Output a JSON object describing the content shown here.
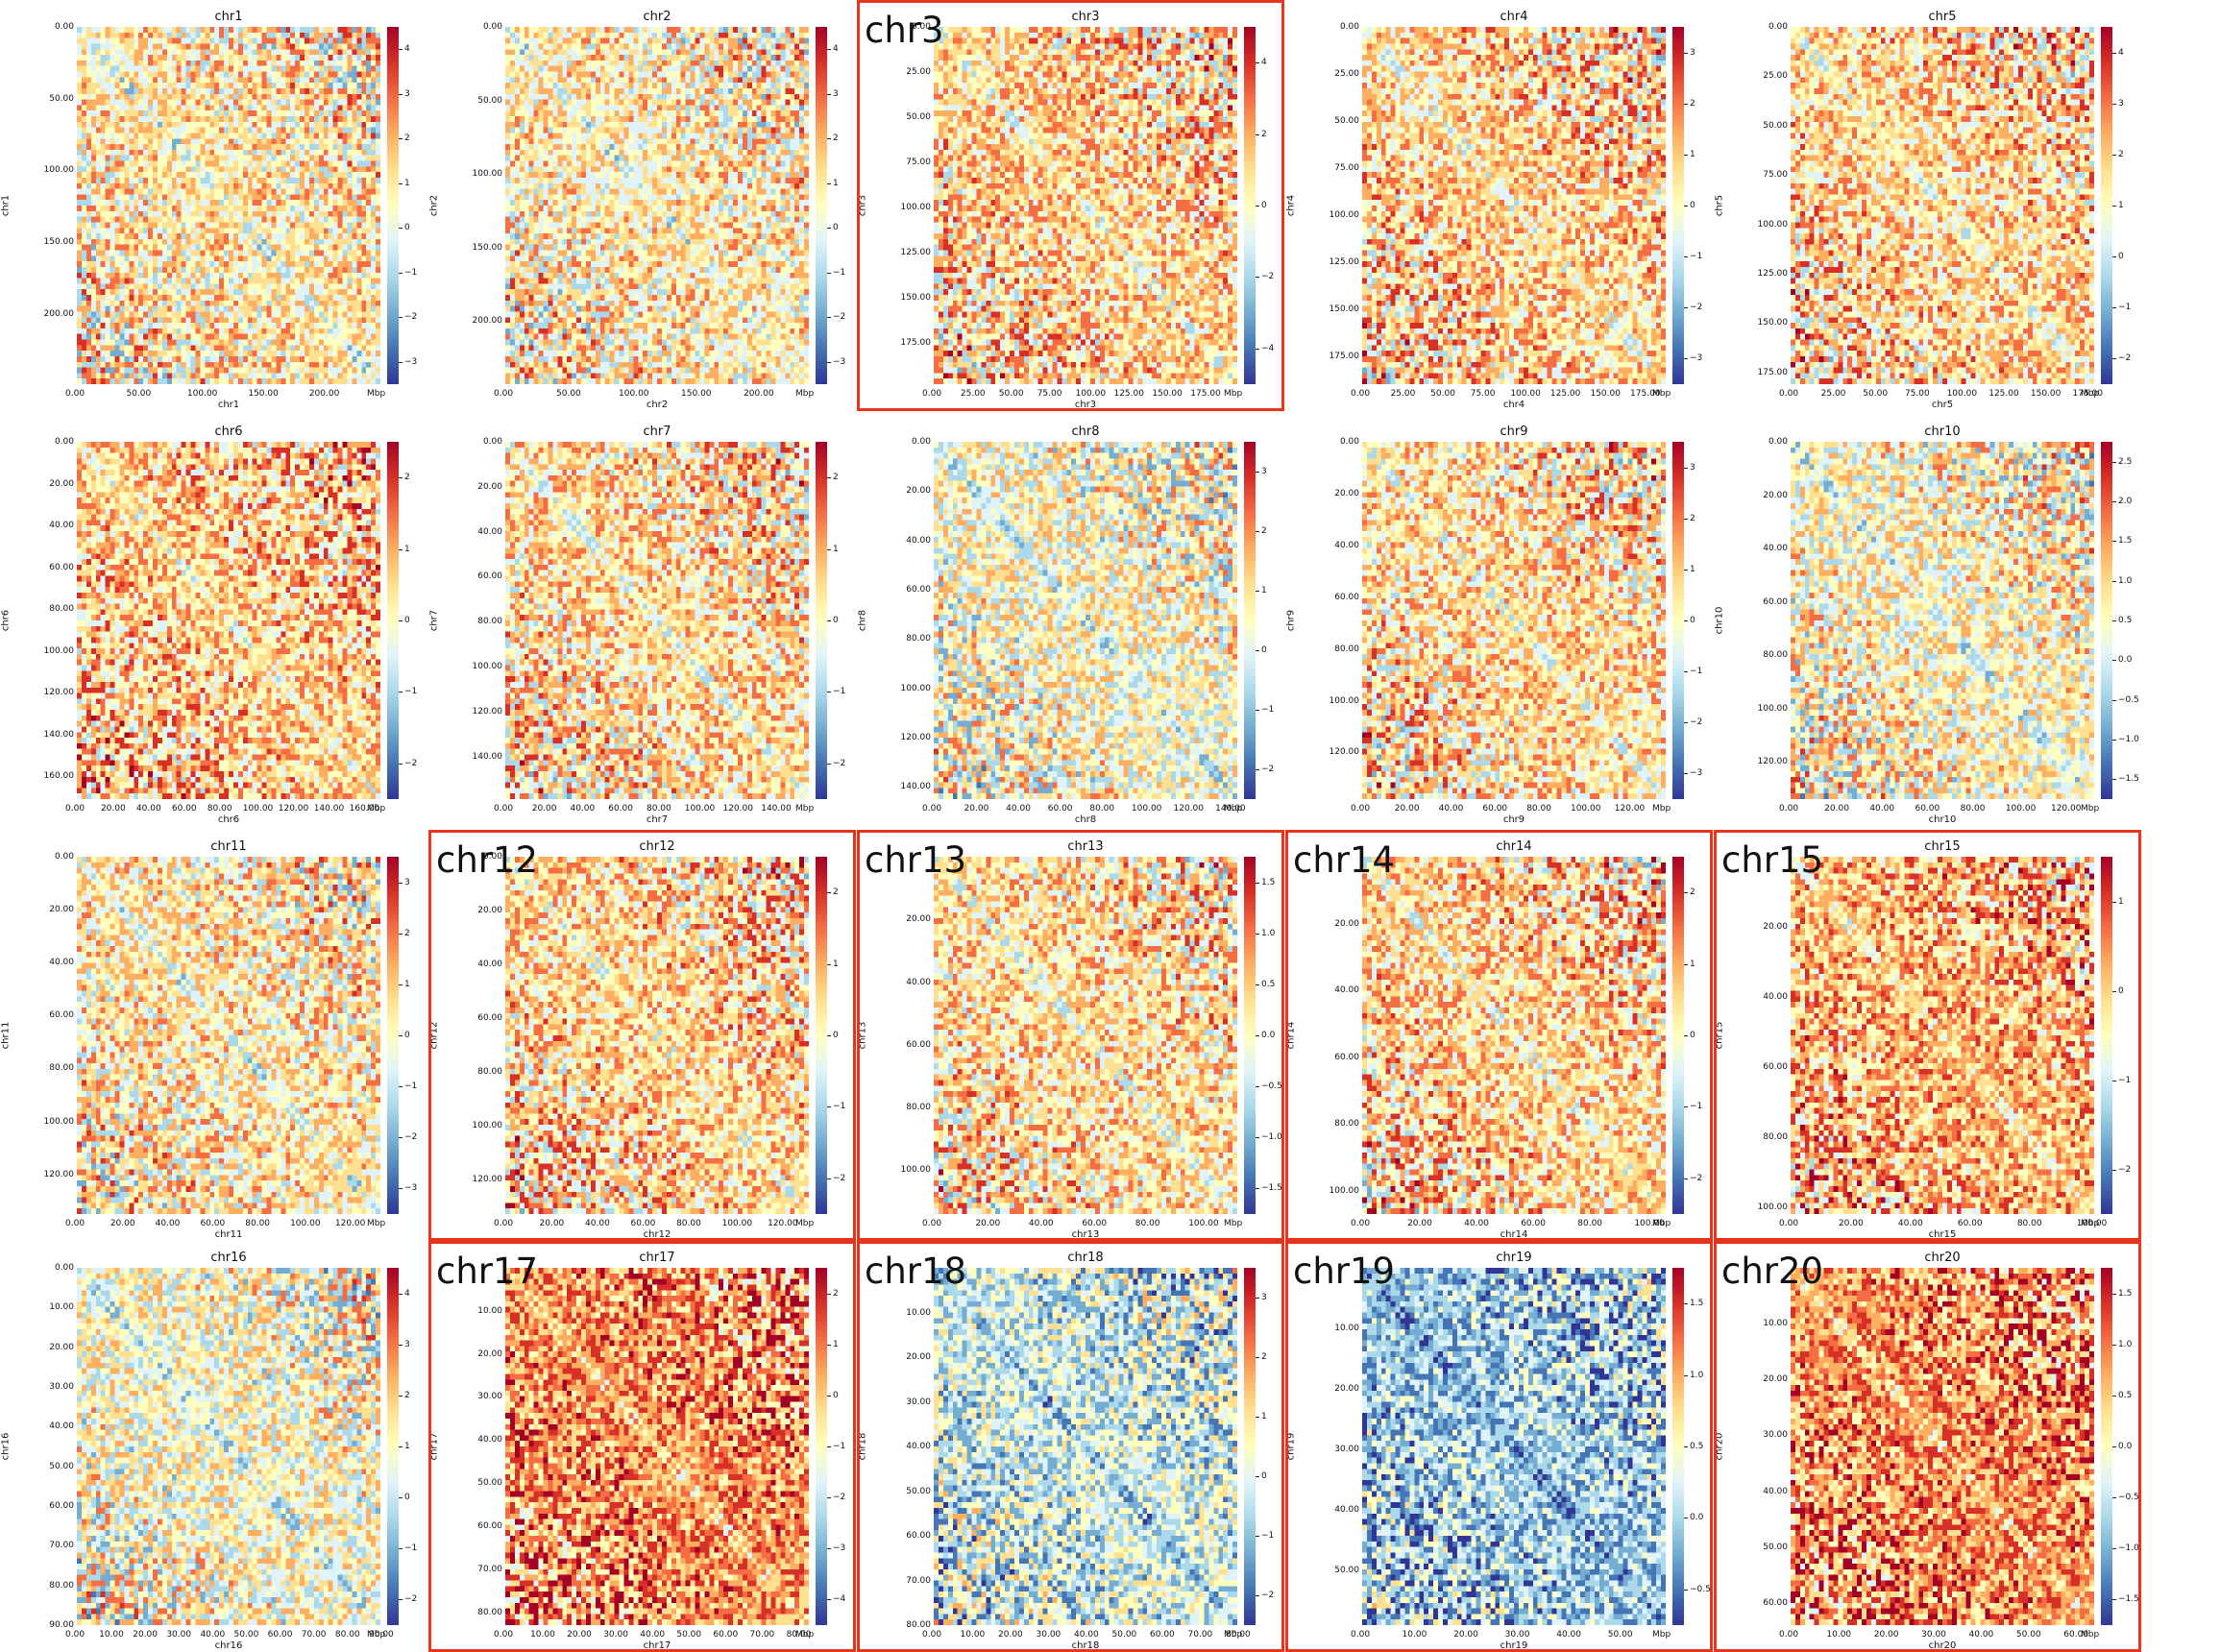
{
  "palette": [
    "#313695",
    "#4575b4",
    "#74add1",
    "#abd9e9",
    "#e0f3f8",
    "#ffffbf",
    "#fee090",
    "#fdae61",
    "#f46d43",
    "#d73027",
    "#a50026"
  ],
  "highlight_color": "#e8341a",
  "chart_data": [
    {
      "type": "heatmap",
      "title": "chr1",
      "xlabel": "chr1",
      "ylabel": "chr1",
      "unit": "Mbp",
      "xticks": [
        "0.00",
        "50.00",
        "100.00",
        "150.00",
        "200.00"
      ],
      "yticks": [
        "0.00",
        "50.00",
        "100.00",
        "150.00",
        "200.00"
      ],
      "xlim": [
        0,
        249
      ],
      "ylim": [
        0,
        249
      ],
      "color_ticks": [
        "4",
        "3",
        "2",
        "1",
        "0",
        "−1",
        "−2",
        "−3"
      ],
      "clim": [
        -3.2,
        4.3
      ],
      "highlighted": false,
      "label": ""
    },
    {
      "type": "heatmap",
      "title": "chr2",
      "xlabel": "chr2",
      "ylabel": "chr2",
      "unit": "Mbp",
      "xticks": [
        "0.00",
        "50.00",
        "100.00",
        "150.00",
        "200.00"
      ],
      "yticks": [
        "0.00",
        "50.00",
        "100.00",
        "150.00",
        "200.00"
      ],
      "xlim": [
        0,
        243
      ],
      "ylim": [
        0,
        243
      ],
      "color_ticks": [
        "4",
        "3",
        "2",
        "1",
        "0",
        "−1",
        "−2",
        "−3"
      ],
      "clim": [
        -3.3,
        4.2
      ],
      "highlighted": false,
      "label": ""
    },
    {
      "type": "heatmap",
      "title": "chr3",
      "xlabel": "chr3",
      "ylabel": "chr3",
      "unit": "Mbp",
      "xticks": [
        "0.00",
        "25.00",
        "50.00",
        "75.00",
        "100.00",
        "125.00",
        "150.00",
        "175.00"
      ],
      "yticks": [
        "0.00",
        "25.00",
        "50.00",
        "75.00",
        "100.00",
        "125.00",
        "150.00",
        "175.00"
      ],
      "xlim": [
        0,
        198
      ],
      "ylim": [
        0,
        198
      ],
      "color_ticks": [
        "4",
        "2",
        "0",
        "−2",
        "−4"
      ],
      "clim": [
        -4.5,
        5
      ],
      "highlighted": true,
      "label": "chr3"
    },
    {
      "type": "heatmap",
      "title": "chr4",
      "xlabel": "chr4",
      "ylabel": "chr4",
      "unit": "Mbp",
      "xticks": [
        "0.00",
        "25.00",
        "50.00",
        "75.00",
        "100.00",
        "125.00",
        "150.00",
        "175.00"
      ],
      "yticks": [
        "0.00",
        "25.00",
        "50.00",
        "75.00",
        "100.00",
        "125.00",
        "150.00",
        "175.00"
      ],
      "xlim": [
        0,
        190
      ],
      "ylim": [
        0,
        190
      ],
      "color_ticks": [
        "3",
        "2",
        "1",
        "0",
        "−1",
        "−2",
        "−3"
      ],
      "clim": [
        -3.4,
        3.5
      ],
      "highlighted": false,
      "label": ""
    },
    {
      "type": "heatmap",
      "title": "chr5",
      "xlabel": "chr5",
      "ylabel": "chr5",
      "unit": "Mbp",
      "xticks": [
        "0.00",
        "25.00",
        "50.00",
        "75.00",
        "100.00",
        "125.00",
        "150.00",
        "175.00"
      ],
      "yticks": [
        "0.00",
        "25.00",
        "50.00",
        "75.00",
        "100.00",
        "125.00",
        "150.00",
        "175.00"
      ],
      "xlim": [
        0,
        181
      ],
      "ylim": [
        0,
        181
      ],
      "color_ticks": [
        "4",
        "3",
        "2",
        "1",
        "0",
        "−1",
        "−2"
      ],
      "clim": [
        -2.9,
        4.2
      ],
      "highlighted": false,
      "label": ""
    },
    {
      "type": "heatmap",
      "title": "chr6",
      "xlabel": "chr6",
      "ylabel": "chr6",
      "unit": "Mbp",
      "xticks": [
        "0.00",
        "20.00",
        "40.00",
        "60.00",
        "80.00",
        "100.00",
        "120.00",
        "140.00",
        "160.00"
      ],
      "yticks": [
        "0.00",
        "20.00",
        "40.00",
        "60.00",
        "80.00",
        "100.00",
        "120.00",
        "140.00",
        "160.00"
      ],
      "xlim": [
        0,
        171
      ],
      "ylim": [
        0,
        171
      ],
      "color_ticks": [
        "2",
        "1",
        "0",
        "−1",
        "−2"
      ],
      "clim": [
        -2.7,
        2.6
      ],
      "highlighted": false,
      "label": ""
    },
    {
      "type": "heatmap",
      "title": "chr7",
      "xlabel": "chr7",
      "ylabel": "chr7",
      "unit": "Mbp",
      "xticks": [
        "0.00",
        "20.00",
        "40.00",
        "60.00",
        "80.00",
        "100.00",
        "120.00",
        "140.00"
      ],
      "yticks": [
        "0.00",
        "20.00",
        "40.00",
        "60.00",
        "80.00",
        "100.00",
        "120.00",
        "140.00"
      ],
      "xlim": [
        0,
        159
      ],
      "ylim": [
        0,
        159
      ],
      "color_ticks": [
        "2",
        "1",
        "0",
        "−1",
        "−2"
      ],
      "clim": [
        -2.6,
        2.8
      ],
      "highlighted": false,
      "label": ""
    },
    {
      "type": "heatmap",
      "title": "chr8",
      "xlabel": "chr8",
      "ylabel": "chr8",
      "unit": "Mbp",
      "xticks": [
        "0.00",
        "20.00",
        "40.00",
        "60.00",
        "80.00",
        "100.00",
        "120.00",
        "140.00"
      ],
      "yticks": [
        "0.00",
        "20.00",
        "40.00",
        "60.00",
        "80.00",
        "100.00",
        "120.00",
        "140.00"
      ],
      "xlim": [
        0,
        145
      ],
      "ylim": [
        0,
        145
      ],
      "color_ticks": [
        "3",
        "2",
        "1",
        "0",
        "−1",
        "−2"
      ],
      "clim": [
        -2.6,
        3.6
      ],
      "highlighted": false,
      "label": ""
    },
    {
      "type": "heatmap",
      "title": "chr9",
      "xlabel": "chr9",
      "ylabel": "chr9",
      "unit": "Mbp",
      "xticks": [
        "0.00",
        "20.00",
        "40.00",
        "60.00",
        "80.00",
        "100.00",
        "120.00"
      ],
      "yticks": [
        "0.00",
        "20.00",
        "40.00",
        "60.00",
        "80.00",
        "100.00",
        "120.00"
      ],
      "xlim": [
        0,
        138
      ],
      "ylim": [
        0,
        138
      ],
      "color_ticks": [
        "3",
        "2",
        "1",
        "0",
        "−1",
        "−2",
        "−3"
      ],
      "clim": [
        -3.3,
        3.7
      ],
      "highlighted": false,
      "label": ""
    },
    {
      "type": "heatmap",
      "title": "chr10",
      "xlabel": "chr10",
      "ylabel": "chr10",
      "unit": "Mbp",
      "xticks": [
        "0.00",
        "20.00",
        "40.00",
        "60.00",
        "80.00",
        "100.00",
        "120.00"
      ],
      "yticks": [
        "0.00",
        "20.00",
        "40.00",
        "60.00",
        "80.00",
        "100.00",
        "120.00"
      ],
      "xlim": [
        0,
        134
      ],
      "ylim": [
        0,
        134
      ],
      "color_ticks": [
        "2.5",
        "2.0",
        "1.5",
        "1.0",
        "0.5",
        "0.0",
        "−0.5",
        "−1.0",
        "−1.5"
      ],
      "clim": [
        -1.9,
        2.5
      ],
      "highlighted": false,
      "label": ""
    },
    {
      "type": "heatmap",
      "title": "chr11",
      "xlabel": "chr11",
      "ylabel": "chr11",
      "unit": "Mbp",
      "xticks": [
        "0.00",
        "20.00",
        "40.00",
        "60.00",
        "80.00",
        "100.00",
        "120.00"
      ],
      "yticks": [
        "0.00",
        "20.00",
        "40.00",
        "60.00",
        "80.00",
        "100.00",
        "120.00"
      ],
      "xlim": [
        0,
        135
      ],
      "ylim": [
        0,
        135
      ],
      "color_ticks": [
        "3",
        "2",
        "1",
        "0",
        "−1",
        "−2",
        "−3"
      ],
      "clim": [
        -3.4,
        3.9
      ],
      "highlighted": false,
      "label": ""
    },
    {
      "type": "heatmap",
      "title": "chr12",
      "xlabel": "chr12",
      "ylabel": "chr12",
      "unit": "Mbp",
      "xticks": [
        "0.00",
        "20.00",
        "40.00",
        "60.00",
        "80.00",
        "100.00",
        "120.00"
      ],
      "yticks": [
        "0.00",
        "20.00",
        "40.00",
        "60.00",
        "80.00",
        "100.00",
        "120.00"
      ],
      "xlim": [
        0,
        133
      ],
      "ylim": [
        0,
        133
      ],
      "color_ticks": [
        "2",
        "1",
        "0",
        "−1",
        "−2"
      ],
      "clim": [
        -2.6,
        2.9
      ],
      "highlighted": true,
      "label": "chr12"
    },
    {
      "type": "heatmap",
      "title": "chr13",
      "xlabel": "chr13",
      "ylabel": "chr13",
      "unit": "Mbp",
      "xticks": [
        "0.00",
        "20.00",
        "40.00",
        "60.00",
        "80.00",
        "100.00"
      ],
      "yticks": [
        "20.00",
        "40.00",
        "60.00",
        "80.00",
        "100.00"
      ],
      "xlim": [
        0,
        114
      ],
      "ylim": [
        0,
        114
      ],
      "color_ticks": [
        "1.5",
        "1.0",
        "0.5",
        "0.0",
        "−0.5",
        "−1.0",
        "−1.5"
      ],
      "clim": [
        -1.6,
        1.6
      ],
      "highlighted": true,
      "label": "chr13"
    },
    {
      "type": "heatmap",
      "title": "chr14",
      "xlabel": "chr14",
      "ylabel": "chr14",
      "unit": "Mbp",
      "xticks": [
        "0.00",
        "20.00",
        "40.00",
        "60.00",
        "80.00",
        "100.00"
      ],
      "yticks": [
        "20.00",
        "40.00",
        "60.00",
        "80.00",
        "100.00"
      ],
      "xlim": [
        0,
        107
      ],
      "ylim": [
        0,
        107
      ],
      "color_ticks": [
        "2",
        "1",
        "0",
        "−1",
        "−2"
      ],
      "clim": [
        -2.6,
        2.1
      ],
      "highlighted": true,
      "label": "chr14"
    },
    {
      "type": "heatmap",
      "title": "chr15",
      "xlabel": "chr15",
      "ylabel": "chr15",
      "unit": "Mbp",
      "xticks": [
        "0.00",
        "20.00",
        "40.00",
        "60.00",
        "80.00",
        "100.00"
      ],
      "yticks": [
        "20.00",
        "40.00",
        "60.00",
        "80.00",
        "100.00"
      ],
      "xlim": [
        0,
        102
      ],
      "ylim": [
        0,
        102
      ],
      "color_ticks": [
        "1",
        "0",
        "−1",
        "−2"
      ],
      "clim": [
        -2.5,
        1.6
      ],
      "highlighted": true,
      "label": "chr15"
    },
    {
      "type": "heatmap",
      "title": "chr16",
      "xlabel": "chr16",
      "ylabel": "chr16",
      "unit": "Mbp",
      "xticks": [
        "0.00",
        "10.00",
        "20.00",
        "30.00",
        "40.00",
        "50.00",
        "60.00",
        "70.00",
        "80.00",
        "90.00"
      ],
      "yticks": [
        "0.00",
        "10.00",
        "20.00",
        "30.00",
        "40.00",
        "50.00",
        "60.00",
        "70.00",
        "80.00",
        "90.00"
      ],
      "xlim": [
        0,
        90
      ],
      "ylim": [
        0,
        90
      ],
      "color_ticks": [
        "4",
        "3",
        "2",
        "1",
        "0",
        "−1",
        "−2"
      ],
      "clim": [
        -2.7,
        4.2
      ],
      "highlighted": false,
      "label": ""
    },
    {
      "type": "heatmap",
      "title": "chr17",
      "xlabel": "chr17",
      "ylabel": "chr17",
      "unit": "Mbp",
      "xticks": [
        "0.00",
        "10.00",
        "20.00",
        "30.00",
        "40.00",
        "50.00",
        "60.00",
        "70.00",
        "80.00"
      ],
      "yticks": [
        "10.00",
        "20.00",
        "30.00",
        "40.00",
        "50.00",
        "60.00",
        "70.00",
        "80.00"
      ],
      "xlim": [
        0,
        83
      ],
      "ylim": [
        0,
        83
      ],
      "color_ticks": [
        "2",
        "1",
        "0",
        "−1",
        "−2",
        "−3",
        "−4"
      ],
      "clim": [
        -4.5,
        2.6
      ],
      "highlighted": true,
      "label": "chr17"
    },
    {
      "type": "heatmap",
      "title": "chr18",
      "xlabel": "chr18",
      "ylabel": "chr18",
      "unit": "Mbp",
      "xticks": [
        "0.00",
        "10.00",
        "20.00",
        "30.00",
        "40.00",
        "50.00",
        "60.00",
        "70.00",
        "80.00"
      ],
      "yticks": [
        "10.00",
        "20.00",
        "30.00",
        "40.00",
        "50.00",
        "60.00",
        "70.00",
        "80.00"
      ],
      "xlim": [
        0,
        80
      ],
      "ylim": [
        0,
        80
      ],
      "color_ticks": [
        "3",
        "2",
        "1",
        "0",
        "−1",
        "−2"
      ],
      "clim": [
        -2.2,
        3.4
      ],
      "highlighted": true,
      "label": "chr18"
    },
    {
      "type": "heatmap",
      "title": "chr19",
      "xlabel": "chr19",
      "ylabel": "chr19",
      "unit": "Mbp",
      "xticks": [
        "0.00",
        "10.00",
        "20.00",
        "30.00",
        "40.00",
        "50.00"
      ],
      "yticks": [
        "10.00",
        "20.00",
        "30.00",
        "40.00",
        "50.00"
      ],
      "xlim": [
        0,
        59
      ],
      "ylim": [
        0,
        59
      ],
      "color_ticks": [
        "1.5",
        "1.0",
        "0.5",
        "0.0",
        "−0.5"
      ],
      "clim": [
        -0.6,
        1.8
      ],
      "highlighted": true,
      "label": "chr19"
    },
    {
      "type": "heatmap",
      "title": "chr20",
      "xlabel": "chr20",
      "ylabel": "chr20",
      "unit": "Mbp",
      "xticks": [
        "0.00",
        "10.00",
        "20.00",
        "30.00",
        "40.00",
        "50.00",
        "60.00"
      ],
      "yticks": [
        "10.00",
        "20.00",
        "30.00",
        "40.00",
        "50.00",
        "60.00"
      ],
      "xlim": [
        0,
        64
      ],
      "ylim": [
        0,
        64
      ],
      "color_ticks": [
        "1.5",
        "1.0",
        "0.5",
        "0.0",
        "−0.5",
        "−1.0",
        "−1.5"
      ],
      "clim": [
        -1.9,
        1.6
      ],
      "highlighted": true,
      "label": "chr20"
    }
  ]
}
